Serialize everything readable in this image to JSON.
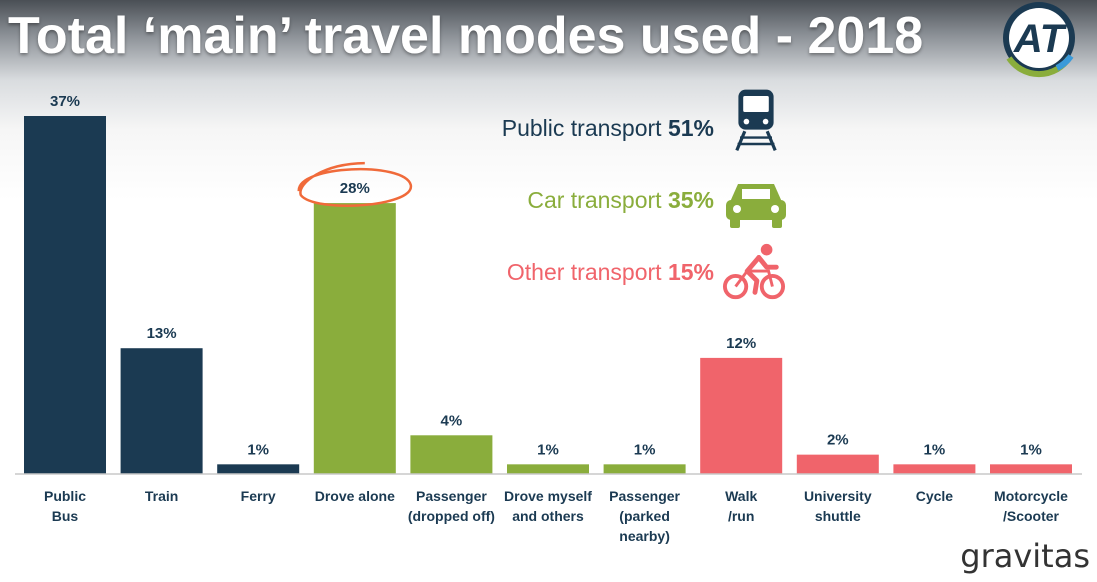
{
  "slide": {
    "title": "Total ‘main’ travel modes used - 2018",
    "logo_text": "AT",
    "brand": "gravitas"
  },
  "colors": {
    "public": "#1b3a52",
    "car": "#8aad3c",
    "other": "#f0646b",
    "annotation": "#f06a3a"
  },
  "legend": [
    {
      "label": "Public transport",
      "value": "51%",
      "group": "public",
      "icon": "train-icon"
    },
    {
      "label": "Car transport",
      "value": "35%",
      "group": "car",
      "icon": "car-icon"
    },
    {
      "label": "Other transport",
      "value": "15%",
      "group": "other",
      "icon": "bicycle-icon"
    }
  ],
  "chart_data": {
    "type": "bar",
    "title": "Total ‘main’ travel modes used - 2018",
    "xlabel": "",
    "ylabel": "",
    "ylim": [
      0,
      37
    ],
    "grid": false,
    "categories": [
      "Public\nBus",
      "Train",
      "Ferry",
      "Drove alone",
      "Passenger\n(dropped off)",
      "Drove myself\nand others",
      "Passenger\n(parked\nnearby)",
      "Walk\n/run",
      "University\nshuttle",
      "Cycle",
      "Motorcycle\n/Scooter"
    ],
    "values": [
      37,
      13,
      1,
      28,
      4,
      1,
      1,
      12,
      2,
      1,
      1
    ],
    "data_labels": [
      "37%",
      "13%",
      "1%",
      "28%",
      "4%",
      "1%",
      "1%",
      "12%",
      "2%",
      "1%",
      "1%"
    ],
    "groups": [
      "public",
      "public",
      "public",
      "car",
      "car",
      "car",
      "car",
      "other",
      "other",
      "other",
      "other"
    ],
    "annotations": [
      {
        "category": "Drove alone",
        "type": "circle-highlight"
      }
    ]
  }
}
